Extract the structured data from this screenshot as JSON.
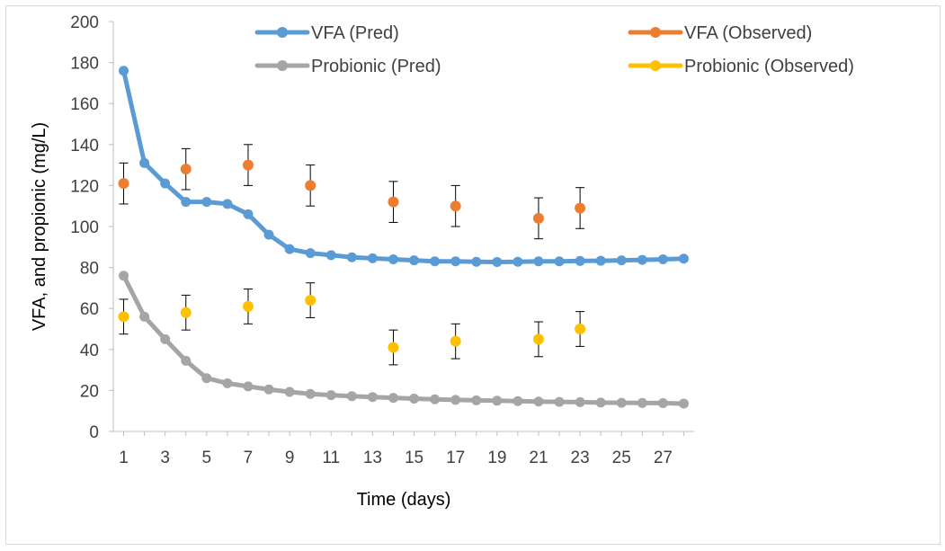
{
  "chart_data": {
    "type": "line",
    "xlabel": "Time (days)",
    "ylabel": "VFA, and propionic (mg/L)",
    "xlim": [
      0.5,
      28.5
    ],
    "ylim": [
      0,
      200
    ],
    "x_ticks": [
      1,
      3,
      5,
      7,
      9,
      11,
      13,
      15,
      17,
      19,
      21,
      23,
      25,
      27
    ],
    "y_ticks": [
      0,
      20,
      40,
      60,
      80,
      100,
      120,
      140,
      160,
      180,
      200
    ],
    "grid": false,
    "legend_position": "top",
    "series": [
      {
        "name": "VFA (Pred)",
        "color": "#5b9bd5",
        "kind": "line",
        "x": [
          1,
          2,
          3,
          4,
          5,
          6,
          7,
          8,
          9,
          10,
          11,
          12,
          13,
          14,
          15,
          16,
          17,
          18,
          19,
          20,
          21,
          22,
          23,
          24,
          25,
          26,
          27,
          28
        ],
        "y": [
          176,
          131,
          121,
          112,
          112,
          111,
          106,
          96,
          89,
          87,
          86,
          85,
          84.5,
          84,
          83.5,
          83,
          83,
          82.8,
          82.7,
          82.8,
          83,
          83,
          83.2,
          83.3,
          83.5,
          83.7,
          84,
          84.3
        ]
      },
      {
        "name": "VFA (Observed)",
        "color": "#ed7d31",
        "kind": "scatter",
        "x": [
          1,
          4,
          7,
          10,
          14,
          17,
          21,
          23
        ],
        "y": [
          121,
          128,
          130,
          120,
          112,
          110,
          104,
          109
        ],
        "error": 10
      },
      {
        "name": "Probionic (Pred)",
        "color": "#a5a5a5",
        "kind": "line",
        "x": [
          1,
          2,
          3,
          4,
          5,
          6,
          7,
          8,
          9,
          10,
          11,
          12,
          13,
          14,
          15,
          16,
          17,
          18,
          19,
          20,
          21,
          22,
          23,
          24,
          25,
          26,
          27,
          28
        ],
        "y": [
          76,
          56,
          45,
          34.5,
          26,
          23.5,
          22,
          20.5,
          19.3,
          18.3,
          17.7,
          17.2,
          16.8,
          16.4,
          16,
          15.7,
          15.4,
          15.2,
          15,
          14.8,
          14.6,
          14.4,
          14.3,
          14.1,
          14,
          13.9,
          13.8,
          13.6
        ]
      },
      {
        "name": "Probionic (Observed)",
        "color": "#ffc000",
        "kind": "scatter",
        "x": [
          1,
          4,
          7,
          10,
          14,
          17,
          21,
          23
        ],
        "y": [
          56,
          58,
          61,
          64,
          41,
          44,
          45,
          50
        ],
        "error": 8.5
      }
    ]
  }
}
